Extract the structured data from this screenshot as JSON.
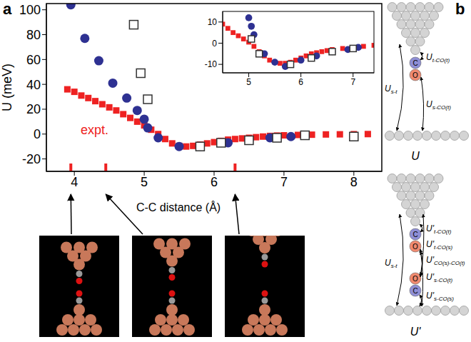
{
  "panel_labels": [
    "a",
    "b"
  ],
  "chart_data": [
    {
      "type": "scatter",
      "x_label": "C-C distance (Å)",
      "y_label": "U (meV)",
      "xlim": [
        3.6,
        8.4
      ],
      "ylim": [
        -30,
        105
      ],
      "xticks": [
        4,
        5,
        6,
        7,
        8
      ],
      "yticks": [
        -20,
        0,
        20,
        40,
        60,
        80,
        100
      ],
      "series": [
        {
          "name": "expt.",
          "color": "#ee2222",
          "marker": "square",
          "x": [
            3.9,
            4.0,
            4.1,
            4.2,
            4.3,
            4.4,
            4.5,
            4.6,
            4.7,
            4.8,
            4.9,
            5.0,
            5.1,
            5.2,
            5.3,
            5.4,
            5.5,
            5.6,
            5.7,
            5.8,
            5.9,
            6.0,
            6.1,
            6.2,
            6.3,
            6.4,
            6.5,
            6.6,
            6.7,
            6.8,
            6.9,
            7.0,
            7.2,
            7.4,
            7.6,
            7.8,
            8.0,
            8.2
          ],
          "values": [
            36,
            34,
            31,
            29,
            26.5,
            24,
            21.5,
            19,
            16,
            13,
            10,
            7,
            3.5,
            0,
            -4,
            -7.5,
            -9.5,
            -10,
            -9.5,
            -8.5,
            -7.5,
            -6.5,
            -5.5,
            -4.5,
            -4,
            -3.5,
            -3,
            -2.5,
            -2,
            -1.5,
            -1.2,
            -1,
            -0.7,
            -0.5,
            -0.3,
            -0.2,
            -0.1,
            0
          ]
        },
        {
          "color": "#2e3192",
          "marker": "circle",
          "x": [
            3.95,
            4.15,
            4.35,
            4.55,
            4.75,
            4.9,
            5.0,
            5.05,
            5.2,
            5.5,
            5.8,
            6.2,
            6.5,
            6.8,
            7.1
          ],
          "values": [
            104,
            77,
            59,
            41,
            29,
            19,
            12,
            5,
            -3,
            -10,
            -10,
            -7,
            -5,
            -3,
            -2
          ]
        },
        {
          "color": "#333333",
          "marker": "open_square",
          "x": [
            4.85,
            4.95,
            5.05,
            5.8,
            6.1,
            6.5,
            6.9,
            7.3,
            8.0
          ],
          "values": [
            88,
            49,
            28,
            -10,
            -7,
            -5,
            -3,
            -1,
            -2
          ]
        }
      ],
      "highlights": {
        "x": [
          3.95,
          4.45,
          6.3
        ],
        "color": "#ee2222"
      }
    },
    {
      "type": "scatter",
      "xlim": [
        4.5,
        7.4
      ],
      "ylim": [
        -14,
        15
      ],
      "xticks": [
        5,
        6,
        7
      ],
      "yticks": [
        -10,
        0,
        10
      ],
      "series": [
        {
          "color": "#ee2222",
          "marker": "square",
          "x": [
            4.5,
            4.6,
            4.7,
            4.8,
            4.9,
            5.0,
            5.1,
            5.2,
            5.3,
            5.4,
            5.5,
            5.6,
            5.7,
            5.8,
            5.9,
            6.0,
            6.1,
            6.2,
            6.3,
            6.4,
            6.5,
            6.6,
            6.8,
            7.0,
            7.2,
            7.4
          ],
          "values": [
            9,
            7,
            5,
            3.5,
            2,
            0.5,
            -1.5,
            -4,
            -6,
            -8,
            -9,
            -9.5,
            -9.5,
            -9,
            -8,
            -7,
            -6,
            -5,
            -4.5,
            -4,
            -3.5,
            -3,
            -2.5,
            -2,
            -1.5,
            -1
          ]
        },
        {
          "color": "#2e3192",
          "marker": "circle",
          "x": [
            5.0,
            5.05,
            5.1,
            5.3,
            5.5,
            5.7,
            6.0,
            6.3,
            6.6,
            6.9,
            7.1
          ],
          "values": [
            12,
            8,
            4,
            -5,
            -9,
            -11,
            -8,
            -6,
            -4,
            -3,
            -2
          ]
        },
        {
          "color": "#333333",
          "marker": "open_square",
          "x": [
            5.05,
            5.2,
            5.8,
            6.2,
            6.6,
            7.0
          ],
          "values": [
            2,
            -5,
            -10,
            -7,
            -4,
            -2.5
          ]
        }
      ]
    }
  ],
  "diagram": {
    "panels": [
      {
        "name": "U",
        "atoms": [
          "C",
          "O"
        ],
        "terms": [
          {
            "main": "U",
            "sub": "s-t"
          },
          {
            "main": "U",
            "sub": "t-CO(t)"
          },
          {
            "main": "U",
            "sub": "s-CO(t)"
          }
        ]
      },
      {
        "name": "U'",
        "atoms": [
          "C",
          "O",
          "O",
          "C"
        ],
        "terms": [
          {
            "main": "U",
            "sub": "s-t"
          },
          {
            "main": "U'",
            "sub": "t-CO(t)"
          },
          {
            "main": "U'",
            "sub": "t-CO(s)"
          },
          {
            "main": "U'",
            "sub": "s-CO(t)"
          },
          {
            "main": "U'",
            "sub": "CO(s)-CO(t)"
          },
          {
            "main": "U'",
            "sub": "s-CO(s)"
          }
        ]
      }
    ]
  }
}
